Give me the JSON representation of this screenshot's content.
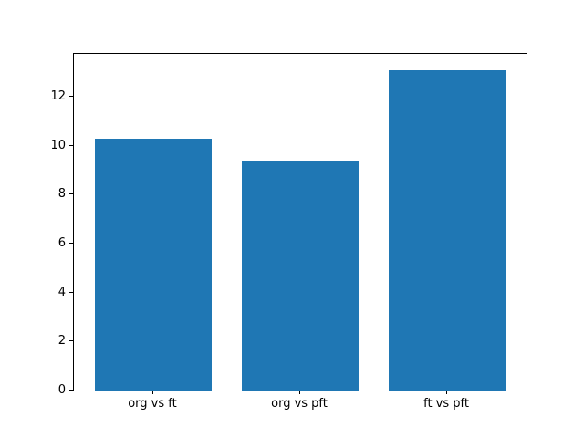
{
  "chart_data": {
    "type": "bar",
    "categories": [
      "org vs ft",
      "org vs pft",
      "ft vs pft"
    ],
    "values": [
      10.3,
      9.4,
      13.1
    ],
    "title": "",
    "xlabel": "",
    "ylabel": "",
    "ylim": [
      0,
      13.76
    ],
    "xlim": [
      -0.54,
      2.54
    ],
    "yticks": [
      0,
      2,
      4,
      6,
      8,
      10,
      12
    ],
    "bar_width_units": 0.8,
    "bar_color": "#1f77b4",
    "axes_color": "#000000",
    "background_color": "#ffffff",
    "grid": false,
    "legend_position": null
  }
}
